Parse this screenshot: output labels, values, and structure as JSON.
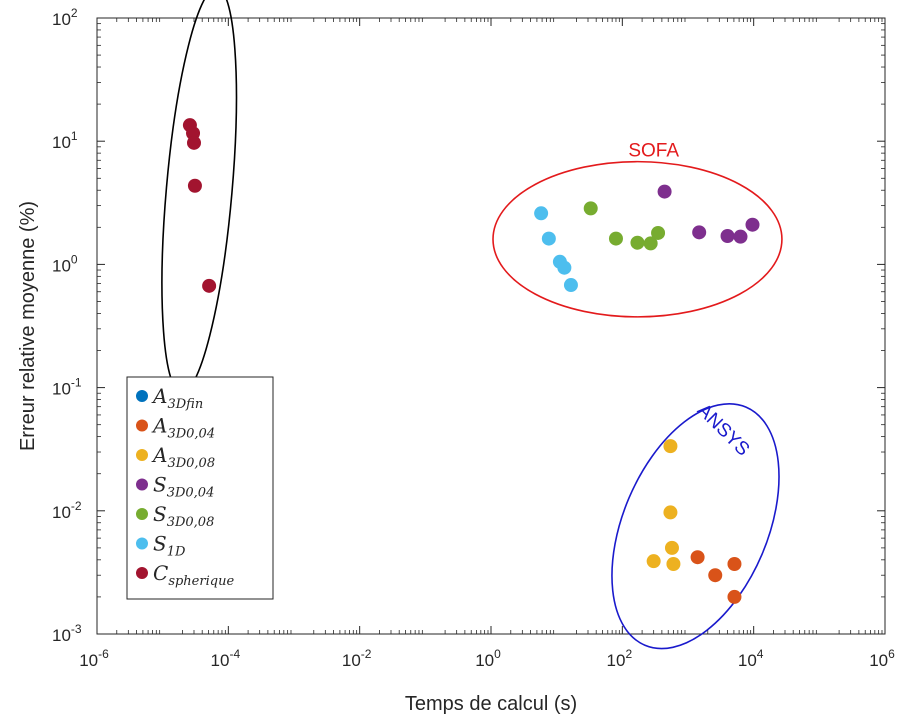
{
  "chart_data": {
    "type": "scatter",
    "xscale": "log",
    "yscale": "log",
    "xlabel": "Temps de calcul (s)",
    "ylabel": "Erreur relative moyenne (%)",
    "xlim": [
      1e-06,
      1000000.0
    ],
    "ylim": [
      0.001,
      100.0
    ],
    "x_ticks": [
      {
        "base": "10",
        "exp": "-6",
        "value": 1e-06
      },
      {
        "base": "10",
        "exp": "-4",
        "value": 0.0001
      },
      {
        "base": "10",
        "exp": "-2",
        "value": 0.01
      },
      {
        "base": "10",
        "exp": "0",
        "value": 1
      },
      {
        "base": "10",
        "exp": "2",
        "value": 100.0
      },
      {
        "base": "10",
        "exp": "4",
        "value": 10000.0
      },
      {
        "base": "10",
        "exp": "6",
        "value": 1000000.0
      }
    ],
    "y_ticks": [
      {
        "base": "10",
        "exp": "-3",
        "value": 0.001
      },
      {
        "base": "10",
        "exp": "-2",
        "value": 0.01
      },
      {
        "base": "10",
        "exp": "-1",
        "value": 0.1
      },
      {
        "base": "10",
        "exp": "0",
        "value": 1
      },
      {
        "base": "10",
        "exp": "1",
        "value": 10
      },
      {
        "base": "10",
        "exp": "2",
        "value": 100
      }
    ],
    "legend_position": "bottom-left",
    "series": [
      {
        "name": "A",
        "sub": "3Dfin",
        "color": "#0072BD",
        "points": []
      },
      {
        "name": "A",
        "sub": "3D0,04",
        "color": "#D95319",
        "points": [
          [
            1400,
            0.0042
          ],
          [
            2600,
            0.003
          ],
          [
            5100,
            0.0037
          ],
          [
            5100,
            0.002
          ]
        ]
      },
      {
        "name": "A",
        "sub": "3D0,08",
        "color": "#EDB120",
        "points": [
          [
            300,
            0.0039
          ],
          [
            540,
            0.0335
          ],
          [
            540,
            0.0097
          ],
          [
            570,
            0.005
          ],
          [
            600,
            0.0037
          ]
        ]
      },
      {
        "name": "S",
        "sub": "3D0,04",
        "color": "#7E2F8E",
        "points": [
          [
            440,
            3.9
          ],
          [
            1480,
            1.82
          ],
          [
            4000,
            1.7
          ],
          [
            6300,
            1.68
          ],
          [
            9600,
            2.1
          ]
        ]
      },
      {
        "name": "S",
        "sub": "3D0,08",
        "color": "#77AC30",
        "points": [
          [
            33,
            2.85
          ],
          [
            80,
            1.62
          ],
          [
            170,
            1.5
          ],
          [
            270,
            1.48
          ],
          [
            350,
            1.8
          ]
        ]
      },
      {
        "name": "S",
        "sub": "1D",
        "color": "#4DBEEE",
        "points": [
          [
            5.8,
            2.6
          ],
          [
            7.6,
            1.62
          ],
          [
            11.2,
            1.05
          ],
          [
            13.1,
            0.94
          ],
          [
            16.5,
            0.68
          ]
        ]
      },
      {
        "name": "C",
        "sub": "spherique",
        "color": "#A2142F",
        "points": [
          [
            2.6e-05,
            13.5
          ],
          [
            2.9e-05,
            11.6
          ],
          [
            3e-05,
            9.7
          ],
          [
            3.1e-05,
            4.35
          ],
          [
            5.1e-05,
            0.67
          ]
        ]
      }
    ],
    "annotations": [
      {
        "text": "SOFA",
        "color": "#E31A1C",
        "x": 300,
        "y": 7.5
      },
      {
        "text": "ANSYS",
        "color": "#1A1ACC",
        "x": 3000,
        "y": 0.042,
        "rotation": 45
      }
    ],
    "groupings": [
      {
        "type": "ellipse",
        "color": "#000000",
        "cx": 3.6e-05,
        "cy": 4.0,
        "rx_decades": 0.5,
        "ry_decades": 1.65,
        "rotation": 5
      },
      {
        "type": "ellipse",
        "color": "#E31A1C",
        "cx": 170,
        "cy": 1.6,
        "rx_decades": 2.2,
        "ry_decades": 0.63,
        "rotation": 0
      },
      {
        "type": "ellipse",
        "color": "#1A1ACC",
        "cx": 1300,
        "cy": 0.0075,
        "rx_decades": 1.1,
        "ry_decades": 1.05,
        "rotation": 23
      }
    ]
  }
}
